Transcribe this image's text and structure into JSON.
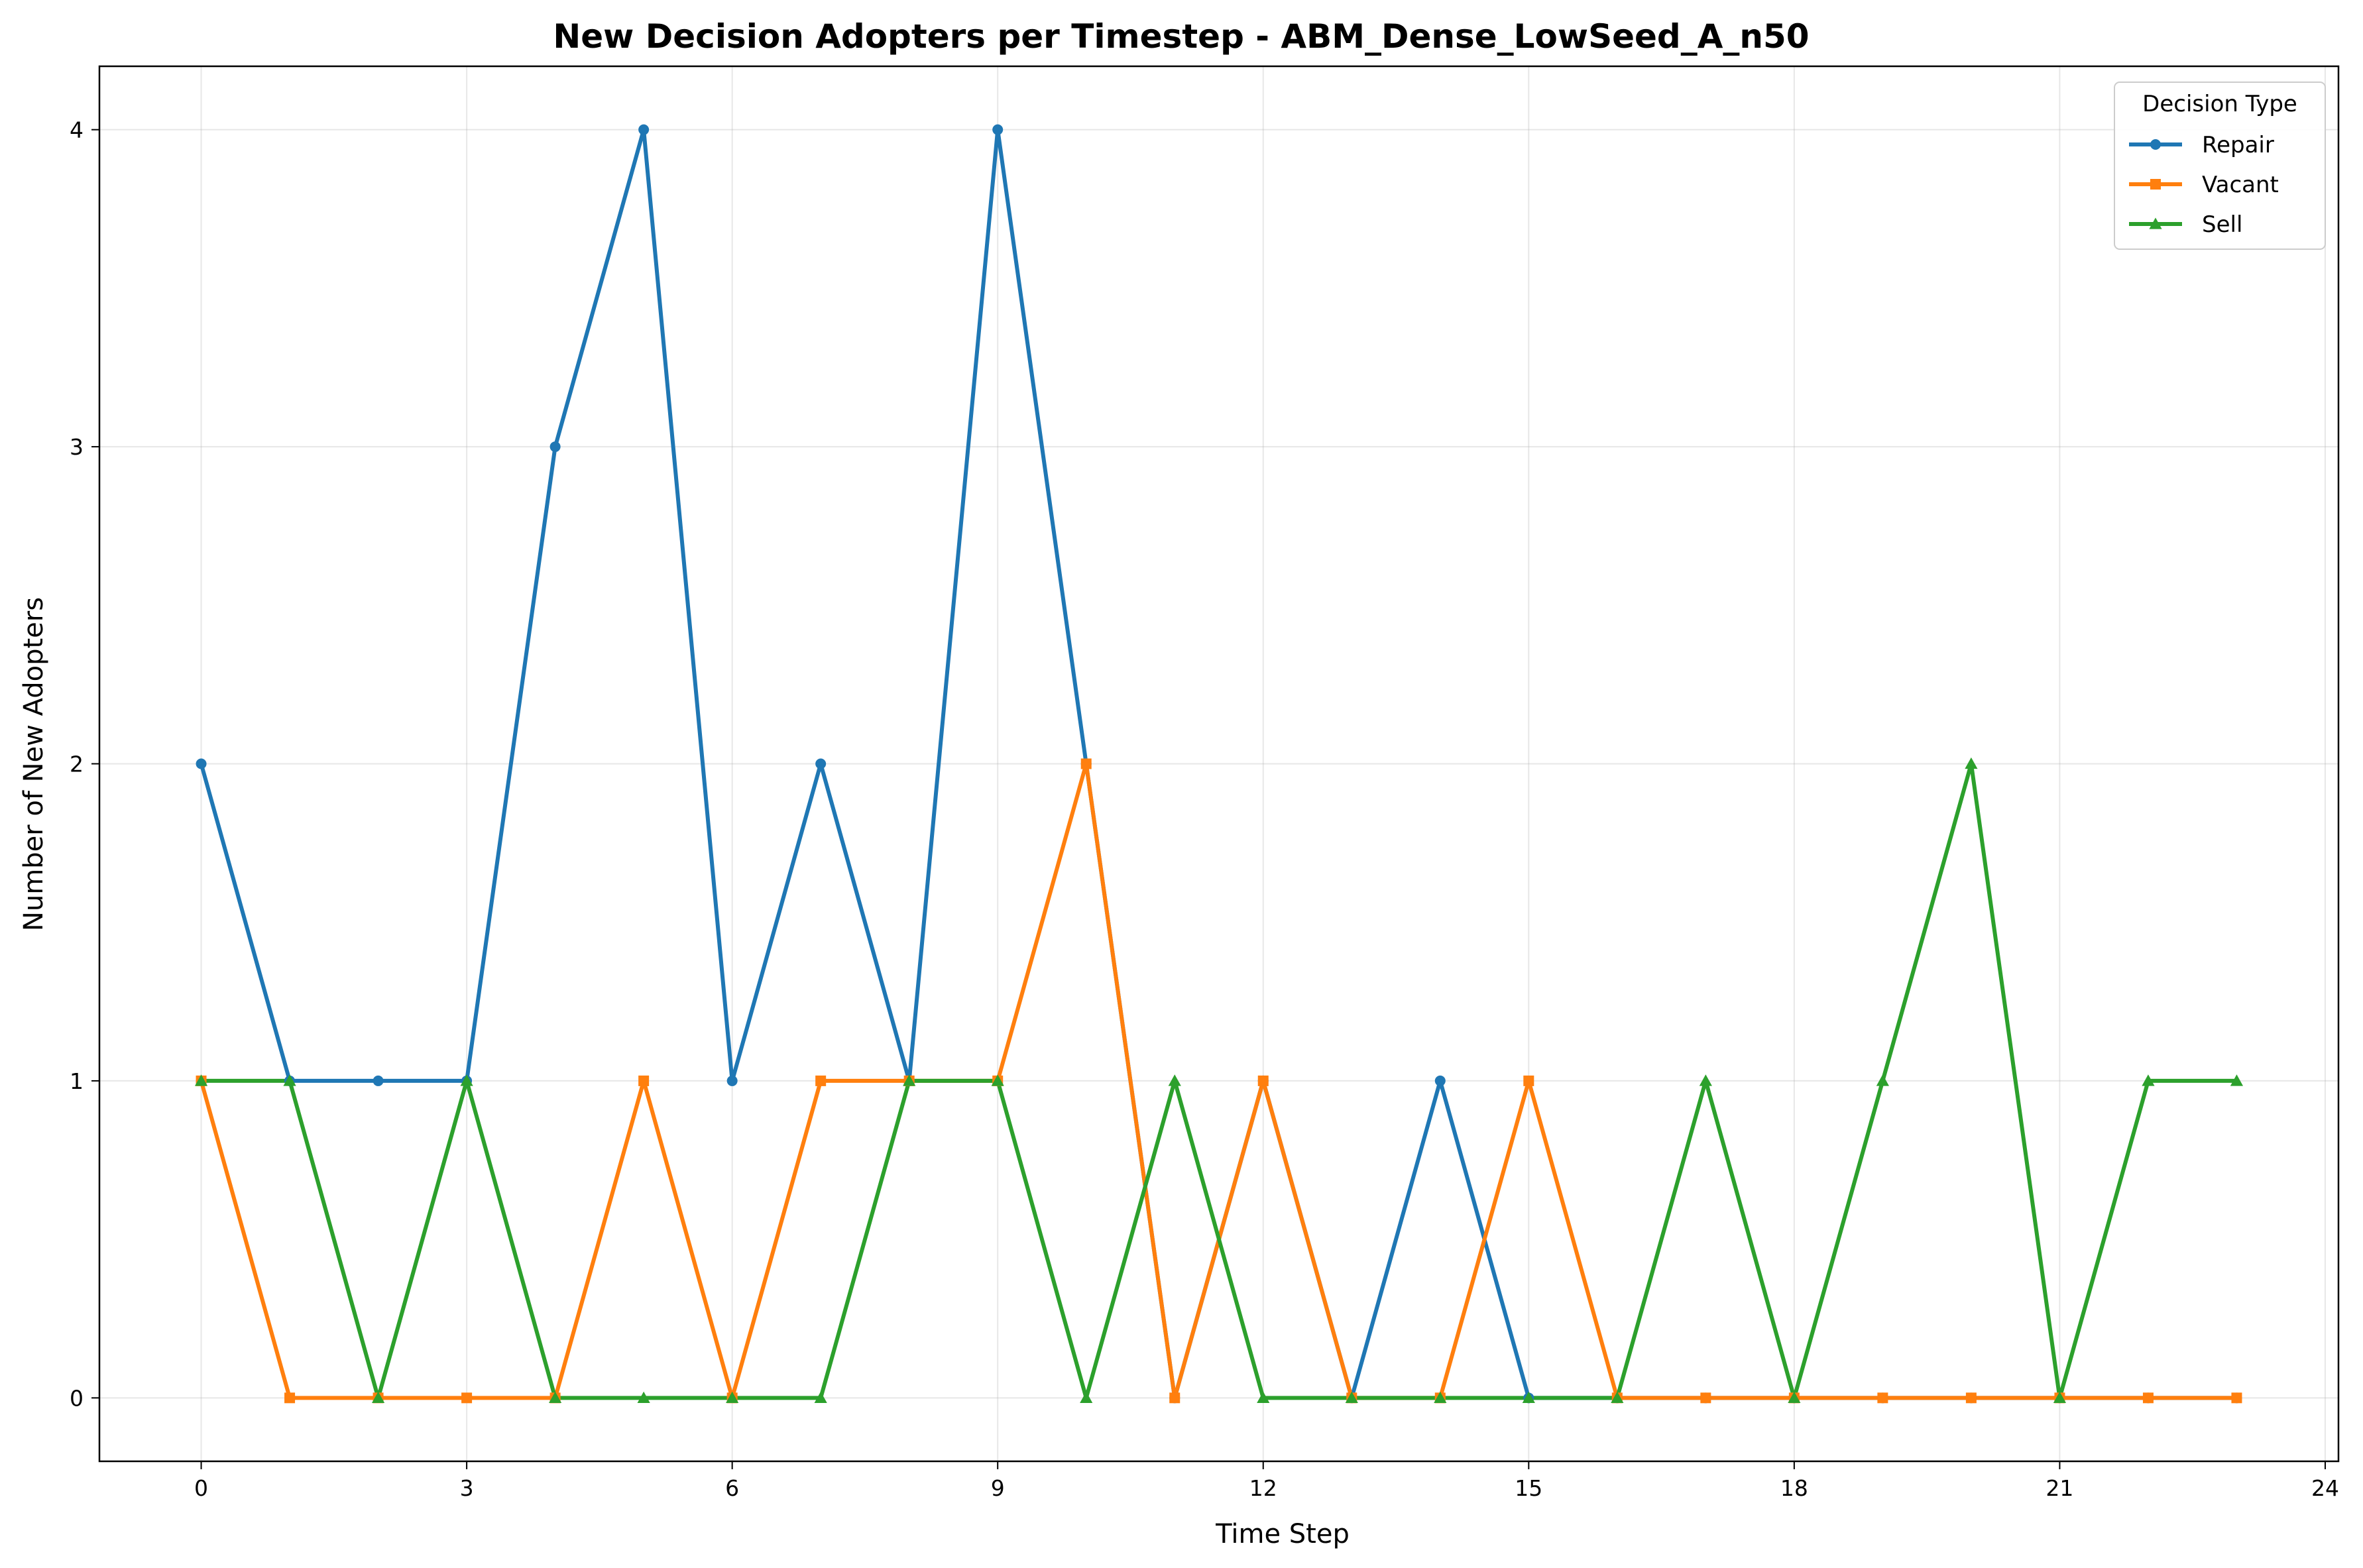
{
  "chart_data": {
    "type": "line",
    "title": "New Decision Adopters per Timestep - ABM_Dense_LowSeed_A_n50",
    "xlabel": "Time Step",
    "ylabel": "Number of New Adopters",
    "xlim": [
      -1.15,
      24.15
    ],
    "ylim": [
      -0.2,
      4.2
    ],
    "xticks": [
      0,
      3,
      6,
      9,
      12,
      15,
      18,
      21,
      24
    ],
    "yticks": [
      0,
      1,
      2,
      3,
      4
    ],
    "grid": true,
    "legend": {
      "title": "Decision Type",
      "position": "top-right"
    },
    "x": [
      0,
      1,
      2,
      3,
      4,
      5,
      6,
      7,
      8,
      9,
      10,
      11,
      12,
      13,
      14,
      15,
      16,
      17,
      18,
      19,
      20,
      21,
      22,
      23
    ],
    "series": [
      {
        "name": "Repair",
        "color": "#1f77b4",
        "marker": "circle",
        "values": [
          2,
          1,
          1,
          1,
          3,
          4,
          1,
          2,
          1,
          4,
          2,
          0,
          1,
          0,
          1,
          0,
          0,
          0,
          0,
          0,
          0,
          0,
          0,
          0
        ]
      },
      {
        "name": "Vacant",
        "color": "#ff7f0e",
        "marker": "square",
        "values": [
          1,
          0,
          0,
          0,
          0,
          1,
          0,
          1,
          1,
          1,
          2,
          0,
          1,
          0,
          0,
          1,
          0,
          0,
          0,
          0,
          0,
          0,
          0,
          0
        ]
      },
      {
        "name": "Sell",
        "color": "#2ca02c",
        "marker": "triangle",
        "values": [
          1,
          1,
          0,
          1,
          0,
          0,
          0,
          0,
          1,
          1,
          0,
          1,
          0,
          0,
          0,
          0,
          0,
          1,
          0,
          1,
          2,
          0,
          1,
          1
        ]
      }
    ]
  }
}
